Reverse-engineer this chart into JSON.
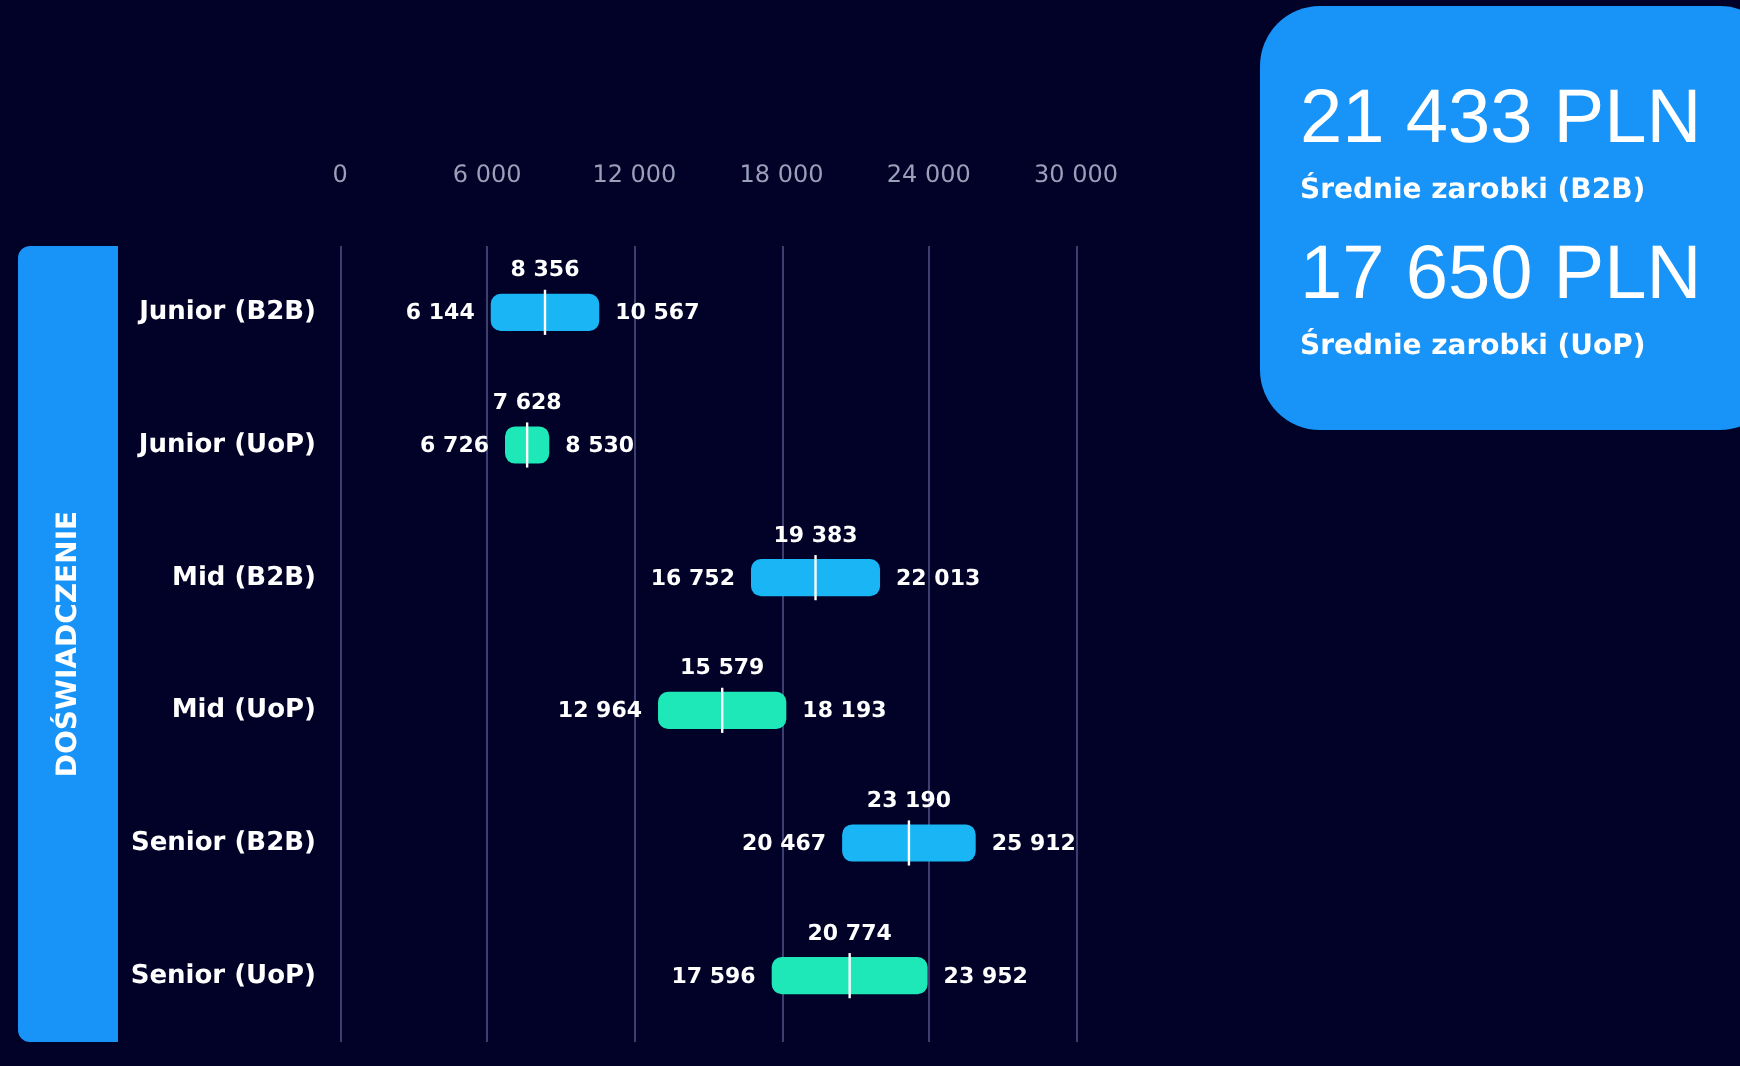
{
  "chart_data": {
    "type": "box",
    "orientation": "horizontal",
    "ylabel": "DOŚWIADCZENIE",
    "categories": [
      "Junior (B2B)",
      "Junior (UoP)",
      "Mid (B2B)",
      "Mid (UoP)",
      "Senior (B2B)",
      "Senior (UoP)"
    ],
    "boxes": [
      {
        "low": 6144,
        "q1": 6144,
        "median": 8356,
        "q3": 10567,
        "high": 10567
      },
      {
        "low": 6726,
        "q1": 6726,
        "median": 7628,
        "q3": 8530,
        "high": 8530
      },
      {
        "low": 16752,
        "q1": 16752,
        "median": 19383,
        "q3": 22013,
        "high": 22013
      },
      {
        "low": 12964,
        "q1": 12964,
        "median": 15579,
        "q3": 18193,
        "high": 18193
      },
      {
        "low": 20467,
        "q1": 20467,
        "median": 23190,
        "q3": 25912,
        "high": 25912
      },
      {
        "low": 17596,
        "q1": 17596,
        "median": 20774,
        "q3": 23952,
        "high": 23952
      }
    ],
    "colors": [
      "#19b5f5",
      "#1ee8b7",
      "#19b5f5",
      "#1ee8b7",
      "#19b5f5",
      "#1ee8b7"
    ],
    "xlim": [
      0,
      30000
    ],
    "xticks": [
      {
        "value": 0,
        "label": "0"
      },
      {
        "value": 6000,
        "label": "6 000"
      },
      {
        "value": 12000,
        "label": "12 000"
      },
      {
        "value": 18000,
        "label": "18 000"
      },
      {
        "value": 24000,
        "label": "24 000"
      },
      {
        "value": 30000,
        "label": "30 000"
      }
    ],
    "grid": "x",
    "annotations": [
      "21 433 PLN",
      "Średnie zarobki (B2B)",
      "17 650 PLN",
      "Średnie zarobki (UoP)",
      {
        "text": "6 144",
        "x": 6144,
        "y": "Junior (B2B)"
      },
      {
        "text": "8 356",
        "x": 8356,
        "y": "Junior (B2B)"
      },
      {
        "text": "10 567",
        "x": 10567,
        "y": "Junior (B2B)"
      },
      {
        "text": "6 726",
        "x": 6726,
        "y": "Junior (UoP)"
      },
      {
        "text": "7 628",
        "x": 7628,
        "y": "Junior (UoP)"
      },
      {
        "text": "8 530",
        "x": 8530,
        "y": "Junior (UoP)"
      },
      {
        "text": "16 752",
        "x": 16752,
        "y": "Mid (B2B)"
      },
      {
        "text": "19 383",
        "x": 19383,
        "y": "Mid (B2B)"
      },
      {
        "text": "22 013",
        "x": 22013,
        "y": "Mid (B2B)"
      },
      {
        "text": "12 964",
        "x": 12964,
        "y": "Mid (UoP)"
      },
      {
        "text": "15 579",
        "x": 15579,
        "y": "Mid (UoP)"
      },
      {
        "text": "18 193",
        "x": 18193,
        "y": "Mid (UoP)"
      },
      {
        "text": "20 467",
        "x": 20467,
        "y": "Senior (B2B)"
      },
      {
        "text": "23 190",
        "x": 23190,
        "y": "Senior (B2B)"
      },
      {
        "text": "25 912",
        "x": 25912,
        "y": "Senior (B2B)"
      },
      {
        "text": "17 596",
        "x": 17596,
        "y": "Senior (UoP)"
      },
      {
        "text": "20 774",
        "x": 20774,
        "y": "Senior (UoP)"
      },
      {
        "text": "23 952",
        "x": 23952,
        "y": "Senior (UoP)"
      }
    ]
  }
}
